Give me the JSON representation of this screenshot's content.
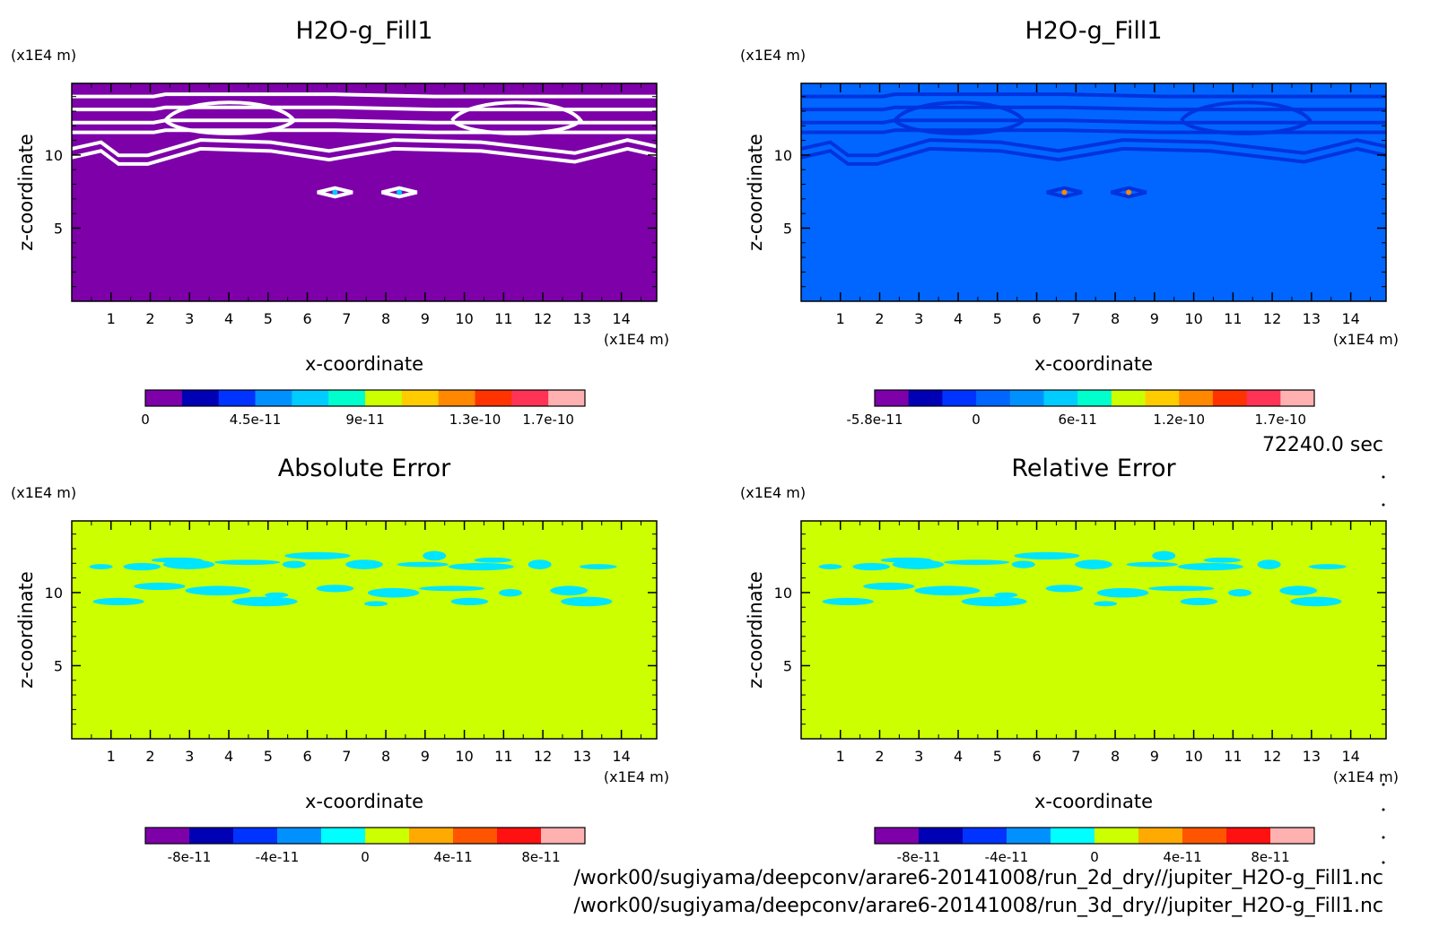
{
  "figure": {
    "time_label": "72240.0 sec",
    "file_paths": [
      "/work00/sugiyama/deepconv/arare6-20141008/run_2d_dry//jupiter_H2O-g_Fill1.nc",
      "/work00/sugiyama/deepconv/arare6-20141008/run_3d_dry//jupiter_H2O-g_Fill1.nc"
    ]
  },
  "chart_data": [
    {
      "type": "heatmap",
      "title": "H2O-g_Fill1",
      "xlabel": "x-coordinate",
      "ylabel": "z-coordinate",
      "x_unit": "(x1E4 m)",
      "y_unit": "(x1E4 m)",
      "xlim": [
        0,
        14.9
      ],
      "ylim": [
        0,
        14.9
      ],
      "x_ticks": [
        1,
        2,
        3,
        4,
        5,
        6,
        7,
        8,
        9,
        10,
        11,
        12,
        13,
        14
      ],
      "y_ticks": [
        5,
        10
      ],
      "background_color": "#7d00a9",
      "contour_color": "#ffffff",
      "colorbar": {
        "colors": [
          "#7d00a9",
          "#0000b4",
          "#0033ff",
          "#0091ff",
          "#00ccff",
          "#00ffcc",
          "#ccff00",
          "#ffcc00",
          "#ff8800",
          "#ff3300",
          "#ff3355",
          "#ffb0b0"
        ],
        "labels": [
          "0",
          "4.5e-11",
          "9e-11",
          "1.3e-10",
          "1.7e-10"
        ],
        "label_positions": [
          0,
          3,
          6,
          9,
          11
        ]
      }
    },
    {
      "type": "heatmap",
      "title": "H2O-g_Fill1",
      "xlabel": "x-coordinate",
      "ylabel": "z-coordinate",
      "x_unit": "(x1E4 m)",
      "y_unit": "(x1E4 m)",
      "xlim": [
        0,
        14.9
      ],
      "ylim": [
        0,
        14.9
      ],
      "x_ticks": [
        1,
        2,
        3,
        4,
        5,
        6,
        7,
        8,
        9,
        10,
        11,
        12,
        13,
        14
      ],
      "y_ticks": [
        5,
        10
      ],
      "background_color": "#0066ff",
      "contour_color": "#0033dd",
      "colorbar": {
        "colors": [
          "#7d00a9",
          "#0000b4",
          "#0033ff",
          "#0066ff",
          "#0091ff",
          "#00ccff",
          "#00ffcc",
          "#ccff00",
          "#ffcc00",
          "#ff8800",
          "#ff3300",
          "#ff3355",
          "#ffb0b0"
        ],
        "labels": [
          "-5.8e-11",
          "0",
          "6e-11",
          "1.2e-10",
          "1.7e-10"
        ],
        "label_positions": [
          0,
          3,
          6,
          9,
          12
        ]
      }
    },
    {
      "type": "heatmap",
      "title": "Absolute Error",
      "xlabel": "x-coordinate",
      "ylabel": "z-coordinate",
      "x_unit": "(x1E4 m)",
      "y_unit": "(x1E4 m)",
      "xlim": [
        0,
        14.9
      ],
      "ylim": [
        0,
        14.9
      ],
      "x_ticks": [
        1,
        2,
        3,
        4,
        5,
        6,
        7,
        8,
        9,
        10,
        11,
        12,
        13,
        14
      ],
      "y_ticks": [
        5,
        10
      ],
      "background_color": "#ccff00",
      "contour_color": "#00e5ff",
      "colorbar": {
        "colors": [
          "#7d00a9",
          "#0000b4",
          "#0033ff",
          "#0091ff",
          "#00ffff",
          "#ccff00",
          "#ffaa00",
          "#ff5500",
          "#ff1111",
          "#ffb0b0"
        ],
        "labels": [
          "-8e-11",
          "-4e-11",
          "0",
          "4e-11",
          "8e-11"
        ],
        "label_positions": [
          1,
          3,
          5,
          7,
          9
        ]
      }
    },
    {
      "type": "heatmap",
      "title": "Relative Error",
      "xlabel": "x-coordinate",
      "ylabel": "z-coordinate",
      "x_unit": "(x1E4 m)",
      "y_unit": "(x1E4 m)",
      "xlim": [
        0,
        14.9
      ],
      "ylim": [
        0,
        14.9
      ],
      "x_ticks": [
        1,
        2,
        3,
        4,
        5,
        6,
        7,
        8,
        9,
        10,
        11,
        12,
        13,
        14
      ],
      "y_ticks": [
        5,
        10
      ],
      "background_color": "#ccff00",
      "contour_color": "#00e5ff",
      "colorbar": {
        "colors": [
          "#7d00a9",
          "#0000b4",
          "#0033ff",
          "#0091ff",
          "#00ffff",
          "#ccff00",
          "#ffaa00",
          "#ff5500",
          "#ff1111",
          "#ffb0b0"
        ],
        "labels": [
          "-8e-11",
          "-4e-11",
          "0",
          "4e-11",
          "8e-11"
        ],
        "label_positions": [
          1,
          3,
          5,
          7,
          9
        ]
      }
    }
  ]
}
